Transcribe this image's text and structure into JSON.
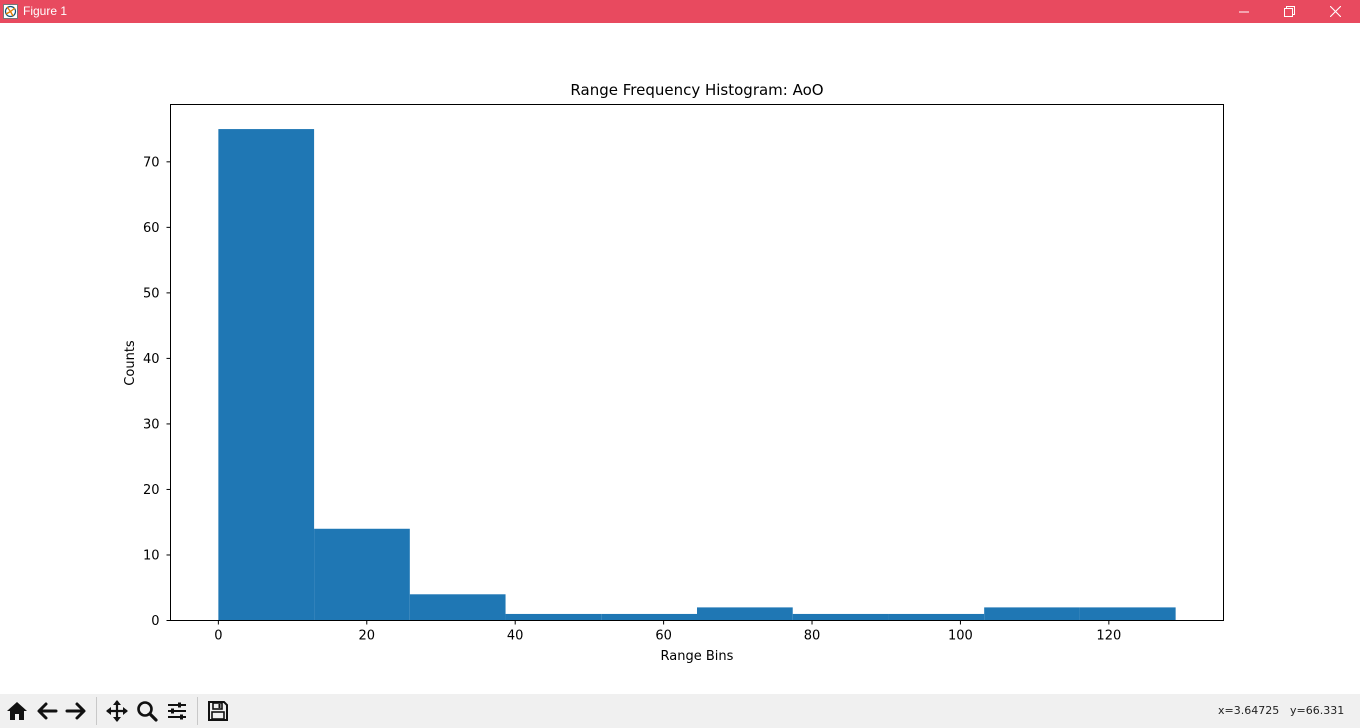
{
  "window": {
    "title": "Figure 1",
    "titlebar_color": "#e84a5f",
    "controls": {
      "minimize": "minimize-icon",
      "maximize": "restore-icon",
      "close": "close-icon"
    }
  },
  "toolbar": {
    "buttons": [
      {
        "name": "home",
        "icon": "home-icon"
      },
      {
        "name": "back",
        "icon": "arrow-left-icon"
      },
      {
        "name": "forward",
        "icon": "arrow-right-icon"
      },
      {
        "name": "pan",
        "icon": "move-icon"
      },
      {
        "name": "zoom",
        "icon": "zoom-icon"
      },
      {
        "name": "subplots",
        "icon": "sliders-icon"
      },
      {
        "name": "save",
        "icon": "save-icon"
      }
    ],
    "status_x": "x=3.64725",
    "status_y": "y=66.331"
  },
  "chart_data": {
    "type": "bar",
    "title": "Range Frequency Histogram: AoO",
    "xlabel": "Range Bins",
    "ylabel": "Counts",
    "bin_edges": [
      0,
      12.9,
      25.8,
      38.7,
      51.6,
      64.5,
      77.4,
      90.3,
      103.2,
      116.1,
      129
    ],
    "values": [
      75,
      14,
      4,
      1,
      1,
      2,
      1,
      1,
      2,
      2
    ],
    "xlim": [
      -6.45,
      135.45
    ],
    "ylim": [
      0,
      78.75
    ],
    "xticks": [
      0,
      20,
      40,
      60,
      80,
      100,
      120
    ],
    "yticks": [
      0,
      10,
      20,
      30,
      40,
      50,
      60,
      70
    ],
    "bar_color": "#1f77b4",
    "grid": false
  }
}
